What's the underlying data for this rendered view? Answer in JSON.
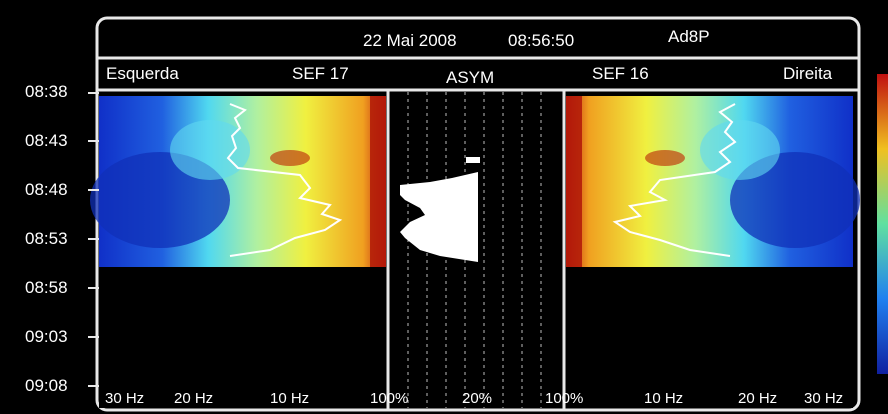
{
  "header": {
    "date": "22 Mai 2008",
    "time": "08:56:50",
    "patient_id": "Ad8P"
  },
  "panels": {
    "left_label": "Esquerda",
    "left_sef": "SEF 17",
    "center_label": "ASYM",
    "right_sef": "SEF 16",
    "right_label": "Direita"
  },
  "y_axis": {
    "ticks": [
      "08:38",
      "08:43",
      "08:48",
      "08:53",
      "08:58",
      "09:03",
      "09:08"
    ]
  },
  "x_axis": {
    "left_ticks": [
      "30 Hz",
      "20 Hz",
      "10 Hz",
      "100%"
    ],
    "center_ticks": [
      "20%"
    ],
    "right_ticks": [
      "100%",
      "10 Hz",
      "20 Hz",
      "30 Hz"
    ]
  },
  "colors": {
    "frame": "#e8e8e8",
    "background": "#000000",
    "spectro_blue": "#1030d0",
    "spectro_cyan": "#40d8f0",
    "spectro_yellow": "#f0f040",
    "spectro_red": "#c02010"
  }
}
